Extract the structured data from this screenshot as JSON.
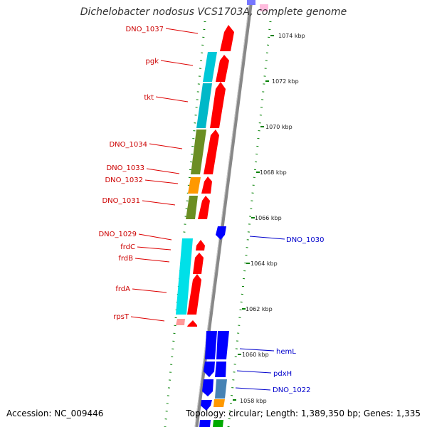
{
  "title": "Dichelobacter nodosus VCS1703A, complete genome",
  "accession_text": "Accession: NC_009446",
  "topology_text": "Topology: circular; Length: 1,389,350 bp; Genes: 1,335",
  "colors": {
    "forward_gene": "#ff0000",
    "reverse_gene": "#0000ff",
    "cog_cyan": "#00c8d8",
    "cog_olive": "#6b8e23",
    "cog_orange": "#ff9900",
    "cog_pink": "#ff9999",
    "cog_steel": "#4682b4",
    "tick_green": "#008000",
    "backbone": "#888888"
  },
  "scale_ticks": [
    "1074 kbp",
    "1072 kbp",
    "1070 kbp",
    "1068 kbp",
    "1066 kbp",
    "1064 kbp",
    "1062 kbp",
    "1060 kbp",
    "1058 kbp"
  ],
  "forward_labels": [
    "DNO_1037",
    "pgk",
    "tkt",
    "DNO_1034",
    "DNO_1033",
    "DNO_1032",
    "DNO_1031",
    "DNO_1029",
    "frdC",
    "frdB",
    "frdA",
    "rpsT"
  ],
  "reverse_labels": [
    "DNO_1030",
    "hemL",
    "pdxH",
    "DNO_1022"
  ]
}
